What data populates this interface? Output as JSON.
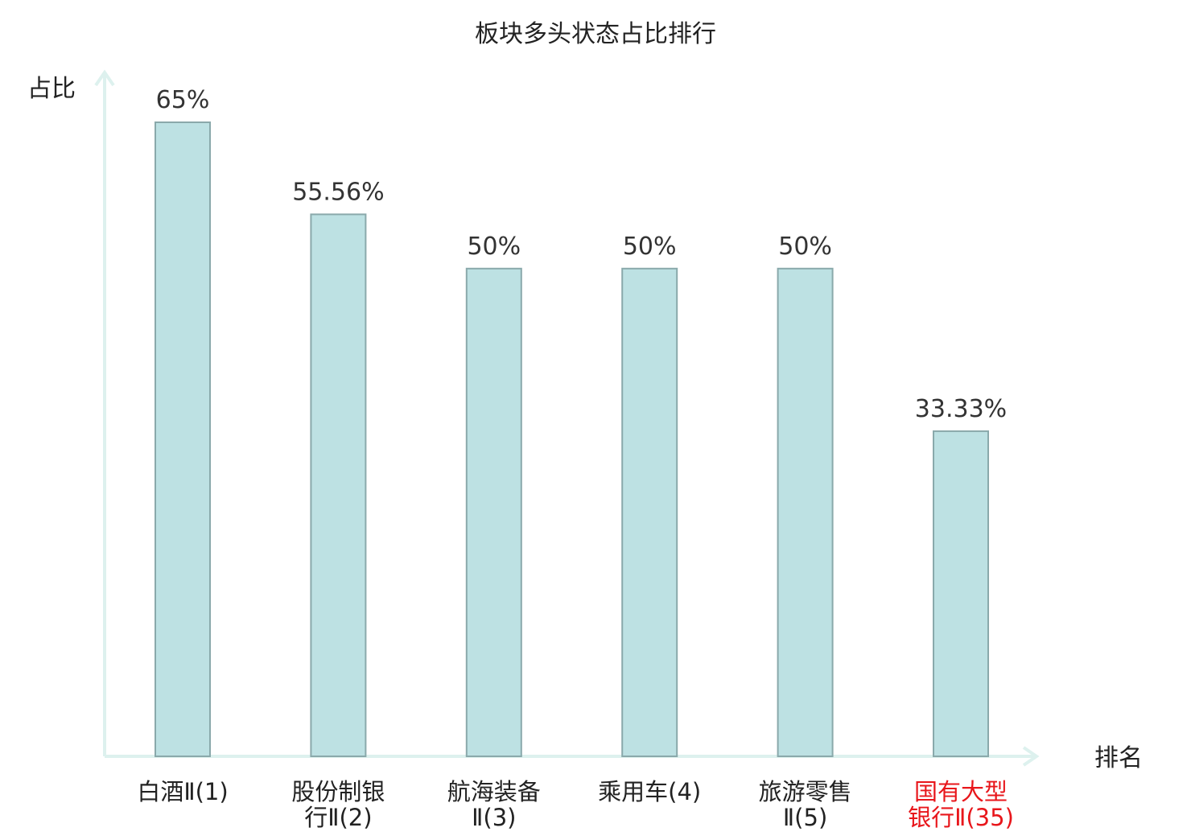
{
  "chart_data": {
    "type": "bar",
    "title": "板块多头状态占比排行",
    "ylabel": "占比",
    "xlabel": "排名",
    "categories": [
      [
        "白酒Ⅱ(1)"
      ],
      [
        "股份制银",
        "行Ⅱ(2)"
      ],
      [
        "航海装备",
        "Ⅱ(3)"
      ],
      [
        "乘用车(4)"
      ],
      [
        "旅游零售",
        "Ⅱ(5)"
      ],
      [
        "国有大型",
        "银行Ⅱ(35)"
      ]
    ],
    "values": [
      65,
      55.56,
      50,
      50,
      50,
      33.33
    ],
    "value_labels": [
      "65%",
      "55.56%",
      "50%",
      "50%",
      "50%",
      "33.33%"
    ],
    "highlight_index": 5,
    "ylim": [
      0,
      65
    ],
    "grid": false,
    "legend": "none"
  },
  "colors": {
    "bar_fill": "#bde1e3",
    "bar_stroke": "#8aa9ab",
    "axis": "#ddf1ee",
    "text": "#222222",
    "value_label": "#333333",
    "highlight": "#e8161b"
  }
}
